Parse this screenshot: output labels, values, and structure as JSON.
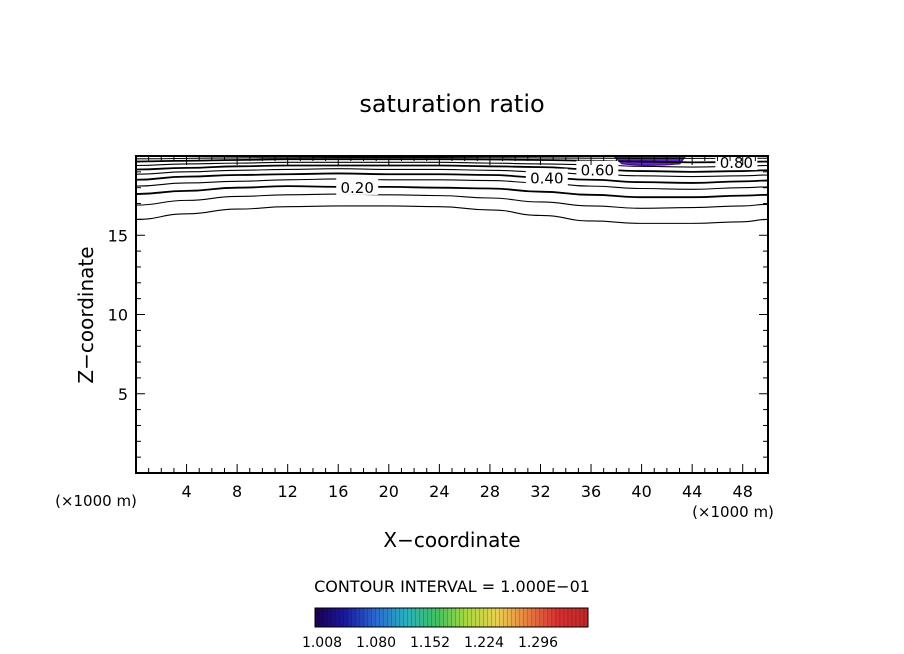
{
  "chart_data": {
    "type": "contour",
    "title": "saturation ratio",
    "xlabel": "X−coordinate",
    "ylabel": "Z−coordinate",
    "x_unit_left": "(×1000 m)",
    "x_unit_right": "(×1000 m)",
    "xlim": [
      0,
      50
    ],
    "ylim": [
      0,
      20
    ],
    "x_ticks": [
      4,
      8,
      12,
      16,
      20,
      24,
      28,
      32,
      36,
      40,
      44,
      48
    ],
    "y_ticks": [
      5,
      10,
      15
    ],
    "contour_interval_text": "CONTOUR INTERVAL = 1.000E−01",
    "contours": [
      {
        "level": 0.0,
        "points": [
          [
            0,
            16
          ],
          [
            4,
            16.35
          ],
          [
            8,
            16.65
          ],
          [
            12,
            16.8
          ],
          [
            16,
            16.85
          ],
          [
            20,
            16.85
          ],
          [
            24,
            16.8
          ],
          [
            28,
            16.6
          ],
          [
            32,
            16.25
          ],
          [
            36,
            15.9
          ],
          [
            40,
            15.75
          ],
          [
            44,
            15.75
          ],
          [
            48,
            15.85
          ],
          [
            50,
            16
          ]
        ]
      },
      {
        "level": 0.1,
        "points": [
          [
            0,
            16.9
          ],
          [
            4,
            17.2
          ],
          [
            8,
            17.45
          ],
          [
            12,
            17.55
          ],
          [
            16,
            17.6
          ],
          [
            20,
            17.55
          ],
          [
            24,
            17.5
          ],
          [
            28,
            17.35
          ],
          [
            32,
            17.1
          ],
          [
            36,
            16.85
          ],
          [
            40,
            16.7
          ],
          [
            44,
            16.75
          ],
          [
            48,
            16.85
          ],
          [
            50,
            16.95
          ]
        ]
      },
      {
        "level": 0.2,
        "label": "0.20",
        "label_x": 17.5,
        "points": [
          [
            0,
            17.6
          ],
          [
            4,
            17.8
          ],
          [
            8,
            18
          ],
          [
            12,
            18.1
          ],
          [
            16,
            18.05
          ],
          [
            20,
            18.05
          ],
          [
            24,
            18
          ],
          [
            28,
            17.95
          ],
          [
            32,
            17.75
          ],
          [
            36,
            17.55
          ],
          [
            40,
            17.4
          ],
          [
            44,
            17.4
          ],
          [
            48,
            17.5
          ],
          [
            50,
            17.55
          ]
        ]
      },
      {
        "level": 0.3,
        "points": [
          [
            0,
            18.1
          ],
          [
            4,
            18.3
          ],
          [
            8,
            18.4
          ],
          [
            12,
            18.5
          ],
          [
            16,
            18.55
          ],
          [
            20,
            18.5
          ],
          [
            24,
            18.5
          ],
          [
            28,
            18.45
          ],
          [
            32,
            18.3
          ],
          [
            36,
            18.1
          ],
          [
            40,
            17.95
          ],
          [
            44,
            17.9
          ],
          [
            48,
            18
          ],
          [
            50,
            18.05
          ]
        ]
      },
      {
        "level": 0.4,
        "label": "0.40",
        "label_x": 32.5,
        "points": [
          [
            0,
            18.5
          ],
          [
            4,
            18.7
          ],
          [
            8,
            18.8
          ],
          [
            12,
            18.85
          ],
          [
            16,
            18.9
          ],
          [
            20,
            18.85
          ],
          [
            24,
            18.85
          ],
          [
            28,
            18.8
          ],
          [
            32,
            18.65
          ],
          [
            36,
            18.5
          ],
          [
            40,
            18.35
          ],
          [
            44,
            18.3
          ],
          [
            48,
            18.4
          ],
          [
            50,
            18.45
          ]
        ]
      },
      {
        "level": 0.5,
        "points": [
          [
            0,
            18.85
          ],
          [
            4,
            19
          ],
          [
            8,
            19.1
          ],
          [
            12,
            19.15
          ],
          [
            16,
            19.2
          ],
          [
            20,
            19.15
          ],
          [
            24,
            19.15
          ],
          [
            28,
            19.1
          ],
          [
            32,
            19
          ],
          [
            36,
            18.85
          ],
          [
            40,
            18.75
          ],
          [
            44,
            18.7
          ],
          [
            48,
            18.75
          ],
          [
            50,
            18.8
          ]
        ]
      },
      {
        "level": 0.6,
        "label": "0.60",
        "label_x": 36.5,
        "points": [
          [
            0,
            19.15
          ],
          [
            4,
            19.25
          ],
          [
            8,
            19.35
          ],
          [
            12,
            19.4
          ],
          [
            16,
            19.4
          ],
          [
            20,
            19.4
          ],
          [
            24,
            19.4
          ],
          [
            28,
            19.35
          ],
          [
            32,
            19.3
          ],
          [
            36,
            19.15
          ],
          [
            40,
            19.05
          ],
          [
            44,
            19
          ],
          [
            48,
            19.05
          ],
          [
            50,
            19.1
          ]
        ]
      },
      {
        "level": 0.7,
        "points": [
          [
            0,
            19.4
          ],
          [
            4,
            19.5
          ],
          [
            8,
            19.55
          ],
          [
            12,
            19.6
          ],
          [
            16,
            19.6
          ],
          [
            20,
            19.6
          ],
          [
            24,
            19.6
          ],
          [
            28,
            19.55
          ],
          [
            32,
            19.5
          ],
          [
            36,
            19.45
          ],
          [
            40,
            19.35
          ],
          [
            44,
            19.3
          ],
          [
            48,
            19.35
          ],
          [
            50,
            19.4
          ]
        ]
      },
      {
        "level": 0.8,
        "label": "0.80",
        "label_x": 47.5,
        "points": [
          [
            0,
            19.65
          ],
          [
            4,
            19.7
          ],
          [
            8,
            19.75
          ],
          [
            12,
            19.8
          ],
          [
            16,
            19.8
          ],
          [
            20,
            19.8
          ],
          [
            24,
            19.8
          ],
          [
            28,
            19.78
          ],
          [
            32,
            19.75
          ],
          [
            36,
            19.7
          ],
          [
            40,
            19.65
          ],
          [
            44,
            19.6
          ],
          [
            48,
            19.62
          ],
          [
            50,
            19.65
          ]
        ]
      },
      {
        "level": 0.9,
        "points": [
          [
            0,
            19.82
          ],
          [
            8,
            19.88
          ],
          [
            16,
            19.9
          ],
          [
            24,
            19.9
          ],
          [
            32,
            19.88
          ],
          [
            40,
            19.85
          ],
          [
            48,
            19.85
          ],
          [
            50,
            19.86
          ]
        ]
      }
    ],
    "filled_regions": [
      {
        "min_value": 1.008,
        "color": "#6a1fd0",
        "x_range": [
          37.8,
          43.5
        ],
        "z_range": [
          19.5,
          20
        ]
      }
    ],
    "colorbar": {
      "tick_labels": [
        "1.008",
        "1.080",
        "1.152",
        "1.224",
        "1.296"
      ],
      "colors": [
        "#1a0050",
        "#1a1aa0",
        "#2a6ad0",
        "#2ab0c0",
        "#40c060",
        "#a8d840",
        "#e8d050",
        "#e88040",
        "#d83030",
        "#c02828"
      ]
    },
    "grid": false
  }
}
